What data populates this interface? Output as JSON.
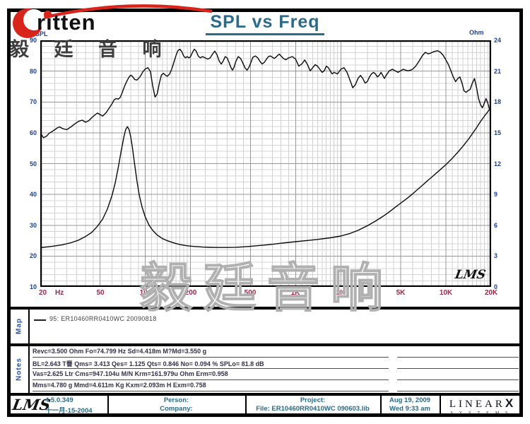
{
  "brand": {
    "name": "ritten",
    "cjk": "毅 廷 音 响"
  },
  "title": "SPL vs Freq",
  "watermark": "毅廷音响",
  "plot_lms": "LMS",
  "colors": {
    "title_teal": "#2a6a8a",
    "axis_blue": "#1d3f96",
    "axis_maroon": "#9b2747",
    "brand_red": "#d8251b"
  },
  "chart_data": {
    "type": "line",
    "title": "SPL vs Freq",
    "grid": true,
    "x_axis": {
      "scale": "log",
      "min": 20,
      "max": 20000,
      "unit": "Hz",
      "major_ticks": [
        20,
        50,
        100,
        200,
        500,
        1000,
        2000,
        5000,
        10000,
        20000
      ],
      "tick_labels": [
        "20",
        "50",
        "100",
        "200",
        "500",
        "1K",
        "2K",
        "5K",
        "10K",
        "20K"
      ],
      "hz_label": "Hz",
      "minor_pattern": [
        1.1,
        1.2,
        1.3,
        1.4,
        1.5,
        1.6,
        1.7,
        1.8,
        1.9,
        2.5,
        3,
        3.5,
        4,
        4.5,
        6,
        7,
        8,
        9
      ]
    },
    "y_left": {
      "title": "dBSPL",
      "min": 10,
      "max": 90,
      "ticks": [
        90,
        80,
        70,
        60,
        50,
        40,
        30,
        20,
        10
      ],
      "minor_step": 2
    },
    "y_right": {
      "title": "Ohm",
      "min": 0,
      "max": 24,
      "ticks": [
        24,
        21,
        18,
        15,
        12,
        9,
        6,
        3,
        0
      ]
    },
    "series": [
      {
        "name": "SPL 95: ER10460RR0410WC",
        "axis": "left",
        "points": [
          [
            20,
            60
          ],
          [
            21,
            58.4
          ],
          [
            22,
            58.9
          ],
          [
            23,
            59.9
          ],
          [
            24,
            60.4
          ],
          [
            25,
            61
          ],
          [
            26,
            61.6
          ],
          [
            27,
            61.9
          ],
          [
            28,
            61.4
          ],
          [
            30,
            61
          ],
          [
            32,
            61.9
          ],
          [
            34,
            62.9
          ],
          [
            36,
            63.7
          ],
          [
            38,
            64.1
          ],
          [
            40,
            63.4
          ],
          [
            42,
            63.9
          ],
          [
            44,
            64.9
          ],
          [
            46,
            65.7
          ],
          [
            48,
            66.4
          ],
          [
            50,
            65.9
          ],
          [
            52,
            65.4
          ],
          [
            55,
            66.6
          ],
          [
            58,
            68.3
          ],
          [
            60,
            69.4
          ],
          [
            62,
            70.7
          ],
          [
            64,
            71.1
          ],
          [
            66,
            70.9
          ],
          [
            68,
            71.4
          ],
          [
            70,
            72.9
          ],
          [
            73,
            75.3
          ],
          [
            76,
            77.1
          ],
          [
            78,
            78.1
          ],
          [
            80,
            78.7
          ],
          [
            82,
            78.3
          ],
          [
            85,
            77.3
          ],
          [
            88,
            77.1
          ],
          [
            90,
            77.6
          ],
          [
            93,
            78.4
          ],
          [
            96,
            79.7
          ],
          [
            100,
            80.7
          ],
          [
            104,
            81.1
          ],
          [
            108,
            79.9
          ],
          [
            112,
            75.2
          ],
          [
            116,
            71.6
          ],
          [
            120,
            72.6
          ],
          [
            124,
            76.1
          ],
          [
            128,
            78.7
          ],
          [
            132,
            79.3
          ],
          [
            136,
            78.7
          ],
          [
            140,
            78.3
          ],
          [
            145,
            79.1
          ],
          [
            150,
            80.7
          ],
          [
            155,
            82.9
          ],
          [
            160,
            85.1
          ],
          [
            165,
            86.7
          ],
          [
            170,
            87.1
          ],
          [
            175,
            86.3
          ],
          [
            180,
            84.9
          ],
          [
            185,
            84.3
          ],
          [
            190,
            84.7
          ],
          [
            195,
            84.3
          ],
          [
            200,
            84.7
          ],
          [
            206,
            86.1
          ],
          [
            212,
            87.1
          ],
          [
            218,
            86.5
          ],
          [
            225,
            84.9
          ],
          [
            232,
            84.3
          ],
          [
            240,
            84.7
          ],
          [
            250,
            84.3
          ],
          [
            260,
            83.9
          ],
          [
            270,
            84.3
          ],
          [
            280,
            85.5
          ],
          [
            290,
            86.5
          ],
          [
            300,
            85.3
          ],
          [
            310,
            83.3
          ],
          [
            320,
            82.3
          ],
          [
            330,
            83.3
          ],
          [
            340,
            84.7
          ],
          [
            350,
            84.3
          ],
          [
            360,
            82.9
          ],
          [
            370,
            81.3
          ],
          [
            380,
            80.3
          ],
          [
            390,
            81.3
          ],
          [
            400,
            83.1
          ],
          [
            415,
            84.7
          ],
          [
            430,
            84.1
          ],
          [
            445,
            82.7
          ],
          [
            460,
            81.1
          ],
          [
            475,
            80.3
          ],
          [
            490,
            81.3
          ],
          [
            505,
            82.9
          ],
          [
            520,
            84.5
          ],
          [
            540,
            84.9
          ],
          [
            560,
            84.3
          ],
          [
            580,
            83.1
          ],
          [
            600,
            82.3
          ],
          [
            620,
            82.9
          ],
          [
            640,
            83.9
          ],
          [
            660,
            84.7
          ],
          [
            680,
            84.9
          ],
          [
            700,
            84.5
          ],
          [
            720,
            84.1
          ],
          [
            740,
            84.5
          ],
          [
            760,
            85.1
          ],
          [
            780,
            85.5
          ],
          [
            800,
            84.9
          ],
          [
            830,
            84.1
          ],
          [
            860,
            83.7
          ],
          [
            900,
            84.3
          ],
          [
            950,
            84.7
          ],
          [
            1000,
            83.9
          ],
          [
            1050,
            81.6
          ],
          [
            1100,
            82.3
          ],
          [
            1150,
            83.6
          ],
          [
            1200,
            82.1
          ],
          [
            1250,
            80.1
          ],
          [
            1300,
            81.1
          ],
          [
            1350,
            82.1
          ],
          [
            1400,
            81.6
          ],
          [
            1450,
            80.6
          ],
          [
            1500,
            79.6
          ],
          [
            1550,
            80.1
          ],
          [
            1600,
            81.6
          ],
          [
            1650,
            81.1
          ],
          [
            1700,
            80.1
          ],
          [
            1750,
            79.1
          ],
          [
            1800,
            79.6
          ],
          [
            1900,
            79.1
          ],
          [
            2000,
            80.6
          ],
          [
            2100,
            81.1
          ],
          [
            2200,
            79.6
          ],
          [
            2300,
            77.1
          ],
          [
            2400,
            74.6
          ],
          [
            2500,
            75.6
          ],
          [
            2600,
            77.6
          ],
          [
            2700,
            78.6
          ],
          [
            2800,
            77.6
          ],
          [
            2900,
            76.1
          ],
          [
            3000,
            76.6
          ],
          [
            3100,
            78.1
          ],
          [
            3200,
            79.1
          ],
          [
            3300,
            79.6
          ],
          [
            3400,
            79.1
          ],
          [
            3500,
            78.1
          ],
          [
            3600,
            78.6
          ],
          [
            3700,
            79.6
          ],
          [
            3800,
            78.6
          ],
          [
            3900,
            77.6
          ],
          [
            4000,
            78.6
          ],
          [
            4200,
            80.1
          ],
          [
            4400,
            80.6
          ],
          [
            4600,
            80.1
          ],
          [
            4800,
            79.6
          ],
          [
            5000,
            80.1
          ],
          [
            5200,
            80.6
          ],
          [
            5400,
            80.3
          ],
          [
            5600,
            80.1
          ],
          [
            5800,
            80.3
          ],
          [
            6000,
            80.6
          ],
          [
            6300,
            81.6
          ],
          [
            6600,
            83.1
          ],
          [
            7000,
            85.1
          ],
          [
            7300,
            86.1
          ],
          [
            7600,
            85.6
          ],
          [
            7900,
            85.8
          ],
          [
            8300,
            86.3
          ],
          [
            8800,
            86.6
          ],
          [
            9200,
            86.1
          ],
          [
            9600,
            85.1
          ],
          [
            10000,
            83.6
          ],
          [
            10400,
            82.1
          ],
          [
            10800,
            80.1
          ],
          [
            11200,
            78.1
          ],
          [
            11600,
            76.6
          ],
          [
            12000,
            77.6
          ],
          [
            12400,
            78.1
          ],
          [
            12800,
            76.1
          ],
          [
            13200,
            73.6
          ],
          [
            13600,
            73.1
          ],
          [
            14000,
            73.6
          ],
          [
            14500,
            74.1
          ],
          [
            15000,
            76.1
          ],
          [
            15500,
            77.6
          ],
          [
            16000,
            74.6
          ],
          [
            16500,
            71.1
          ],
          [
            17000,
            69.1
          ],
          [
            17500,
            68.1
          ],
          [
            18000,
            69.6
          ],
          [
            18500,
            71.1
          ],
          [
            19000,
            69.6
          ],
          [
            19500,
            67.6
          ],
          [
            20000,
            68.6
          ]
        ]
      },
      {
        "name": "Impedance",
        "axis": "right",
        "points": [
          [
            20,
            3.82
          ],
          [
            24,
            3.95
          ],
          [
            28,
            4.1
          ],
          [
            32,
            4.3
          ],
          [
            36,
            4.55
          ],
          [
            40,
            4.9
          ],
          [
            44,
            5.3
          ],
          [
            48,
            5.9
          ],
          [
            52,
            6.6
          ],
          [
            56,
            7.6
          ],
          [
            60,
            8.9
          ],
          [
            63,
            10.1
          ],
          [
            66,
            11.6
          ],
          [
            69,
            13.2
          ],
          [
            72,
            14.6
          ],
          [
            74,
            15.3
          ],
          [
            76,
            15.6
          ],
          [
            78,
            15.3
          ],
          [
            80,
            14.6
          ],
          [
            82,
            13.6
          ],
          [
            85,
            11.9
          ],
          [
            88,
            10.3
          ],
          [
            91,
            9.0
          ],
          [
            95,
            7.8
          ],
          [
            100,
            6.8
          ],
          [
            106,
            6.0
          ],
          [
            112,
            5.5
          ],
          [
            120,
            5.05
          ],
          [
            130,
            4.7
          ],
          [
            140,
            4.5
          ],
          [
            155,
            4.28
          ],
          [
            170,
            4.12
          ],
          [
            190,
            4.0
          ],
          [
            210,
            3.94
          ],
          [
            240,
            3.88
          ],
          [
            270,
            3.85
          ],
          [
            300,
            3.84
          ],
          [
            350,
            3.84
          ],
          [
            400,
            3.86
          ],
          [
            450,
            3.9
          ],
          [
            500,
            3.95
          ],
          [
            600,
            4.05
          ],
          [
            700,
            4.15
          ],
          [
            800,
            4.25
          ],
          [
            900,
            4.33
          ],
          [
            1000,
            4.4
          ],
          [
            1200,
            4.52
          ],
          [
            1400,
            4.62
          ],
          [
            1700,
            4.78
          ],
          [
            2000,
            4.95
          ],
          [
            2300,
            5.2
          ],
          [
            2600,
            5.5
          ],
          [
            3000,
            5.95
          ],
          [
            3400,
            6.4
          ],
          [
            3800,
            6.85
          ],
          [
            4200,
            7.3
          ],
          [
            4600,
            7.75
          ],
          [
            5000,
            8.15
          ],
          [
            5500,
            8.6
          ],
          [
            6000,
            9.05
          ],
          [
            6500,
            9.5
          ],
          [
            7000,
            9.9
          ],
          [
            7500,
            10.3
          ],
          [
            8000,
            10.65
          ],
          [
            9000,
            11.3
          ],
          [
            10000,
            11.9
          ],
          [
            11000,
            12.5
          ],
          [
            12000,
            13.1
          ],
          [
            13000,
            13.7
          ],
          [
            14000,
            14.3
          ],
          [
            15000,
            14.9
          ],
          [
            16000,
            15.5
          ],
          [
            17000,
            16.1
          ],
          [
            18000,
            16.6
          ],
          [
            19000,
            17.05
          ],
          [
            20000,
            17.5
          ]
        ]
      }
    ]
  },
  "map": {
    "label": "Map",
    "legend_text": "95: ER10460RR0410WC   20090818"
  },
  "notes": {
    "label": "Notes",
    "lines": [
      "Revc=3.500 Ohm  Fo=74.799 Hz  Sd=4.418m M?Md=3.550 g",
      "BL=2.643 T罾  Qms= 3.413  Qes= 1.125  Qts= 0.846  No= 0.094 %  SPLo= 81.8 dB",
      "Vas=2.625 Ltr  Cms=947.104u M/N  Krm=161.979u Ohm  Erm=0.958",
      "Mms=4.780 g  Mmd=4.611m Kg  Kxm=2.093m H  Exm=0.758"
    ]
  },
  "footer": {
    "lms_logo": "LMS",
    "version": "4.5.0.349",
    "version_date": "十一月-15-2004",
    "person_label": "Person:",
    "company_label": "Company:",
    "project_label": "Project:",
    "file_label": "File: ER10460RR0410WC  090603.lib",
    "date": "Aug 19, 2009",
    "time": "Wed  9:33 am",
    "linearx": {
      "letters": "LINEAR",
      "x": "X",
      "systems": "SYSTEMS"
    }
  }
}
